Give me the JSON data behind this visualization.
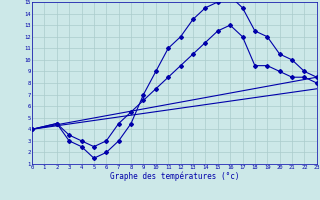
{
  "xlabel": "Graphe des températures (°c)",
  "xlim": [
    0,
    23
  ],
  "ylim": [
    1,
    15
  ],
  "xticks": [
    0,
    1,
    2,
    3,
    4,
    5,
    6,
    7,
    8,
    9,
    10,
    11,
    12,
    13,
    14,
    15,
    16,
    17,
    18,
    19,
    20,
    21,
    22,
    23
  ],
  "yticks": [
    1,
    2,
    3,
    4,
    5,
    6,
    7,
    8,
    9,
    10,
    11,
    12,
    13,
    14,
    15
  ],
  "background_color": "#cce8e8",
  "grid_color": "#aacccc",
  "line_color": "#0000aa",
  "lines": [
    {
      "x": [
        0,
        2,
        3,
        4,
        5,
        6,
        7,
        8,
        9,
        10,
        11,
        12,
        13,
        14,
        15,
        16,
        17,
        18,
        19,
        20,
        21,
        22,
        23
      ],
      "y": [
        4,
        4.5,
        3,
        2.5,
        1.5,
        2,
        3,
        4.5,
        7,
        9,
        11,
        12,
        13.5,
        14.5,
        15,
        15.5,
        14.5,
        12.5,
        12,
        10.5,
        10,
        9,
        8.5
      ],
      "marker": true
    },
    {
      "x": [
        0,
        2,
        3,
        4,
        5,
        6,
        7,
        8,
        9,
        10,
        11,
        12,
        13,
        14,
        15,
        16,
        17,
        18,
        19,
        20,
        21,
        22,
        23
      ],
      "y": [
        4,
        4.5,
        3.5,
        3,
        2.5,
        3,
        4.5,
        5.5,
        6.5,
        7.5,
        8.5,
        9.5,
        10.5,
        11.5,
        12.5,
        13,
        12,
        9.5,
        9.5,
        9,
        8.5,
        8.5,
        8
      ],
      "marker": true
    },
    {
      "x": [
        0,
        23
      ],
      "y": [
        4,
        7.5
      ],
      "marker": false
    },
    {
      "x": [
        0,
        23
      ],
      "y": [
        4,
        8.5
      ],
      "marker": false
    }
  ]
}
